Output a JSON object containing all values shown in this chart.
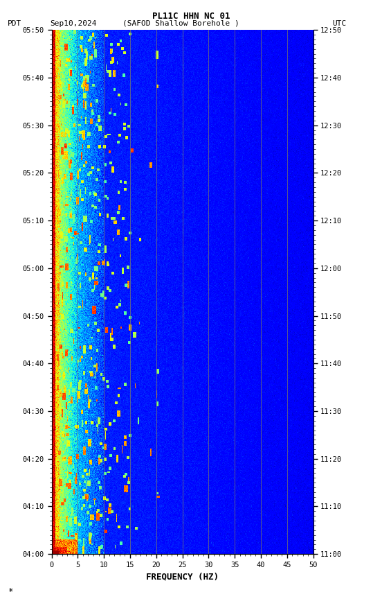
{
  "title_line1": "PL11C HHN NC 01",
  "title_line2_left": "PDT   Sep10,2024      (SAFOD Shallow Borehole )",
  "title_line2_right": "UTC",
  "xlabel": "FREQUENCY (HZ)",
  "freq_min": 0,
  "freq_max": 50,
  "pdt_yticks": [
    "04:00",
    "04:10",
    "04:20",
    "04:30",
    "04:40",
    "04:50",
    "05:00",
    "05:10",
    "05:20",
    "05:30",
    "05:40",
    "05:50"
  ],
  "utc_yticks": [
    "11:00",
    "11:10",
    "11:20",
    "11:30",
    "11:40",
    "11:50",
    "12:00",
    "12:10",
    "12:20",
    "12:30",
    "12:40",
    "12:50"
  ],
  "xticks": [
    0,
    5,
    10,
    15,
    20,
    25,
    30,
    35,
    40,
    45,
    50
  ],
  "vertical_lines_freq": [
    5,
    10,
    15,
    20,
    25,
    30,
    35,
    40,
    45
  ],
  "colormap": "jet",
  "vmin": -2.5,
  "vmax": 4.0,
  "noise_seed": 42,
  "n_time": 700,
  "n_freq": 500,
  "figsize": [
    5.52,
    8.64
  ],
  "dpi": 100,
  "fig_bg": "#ffffff"
}
